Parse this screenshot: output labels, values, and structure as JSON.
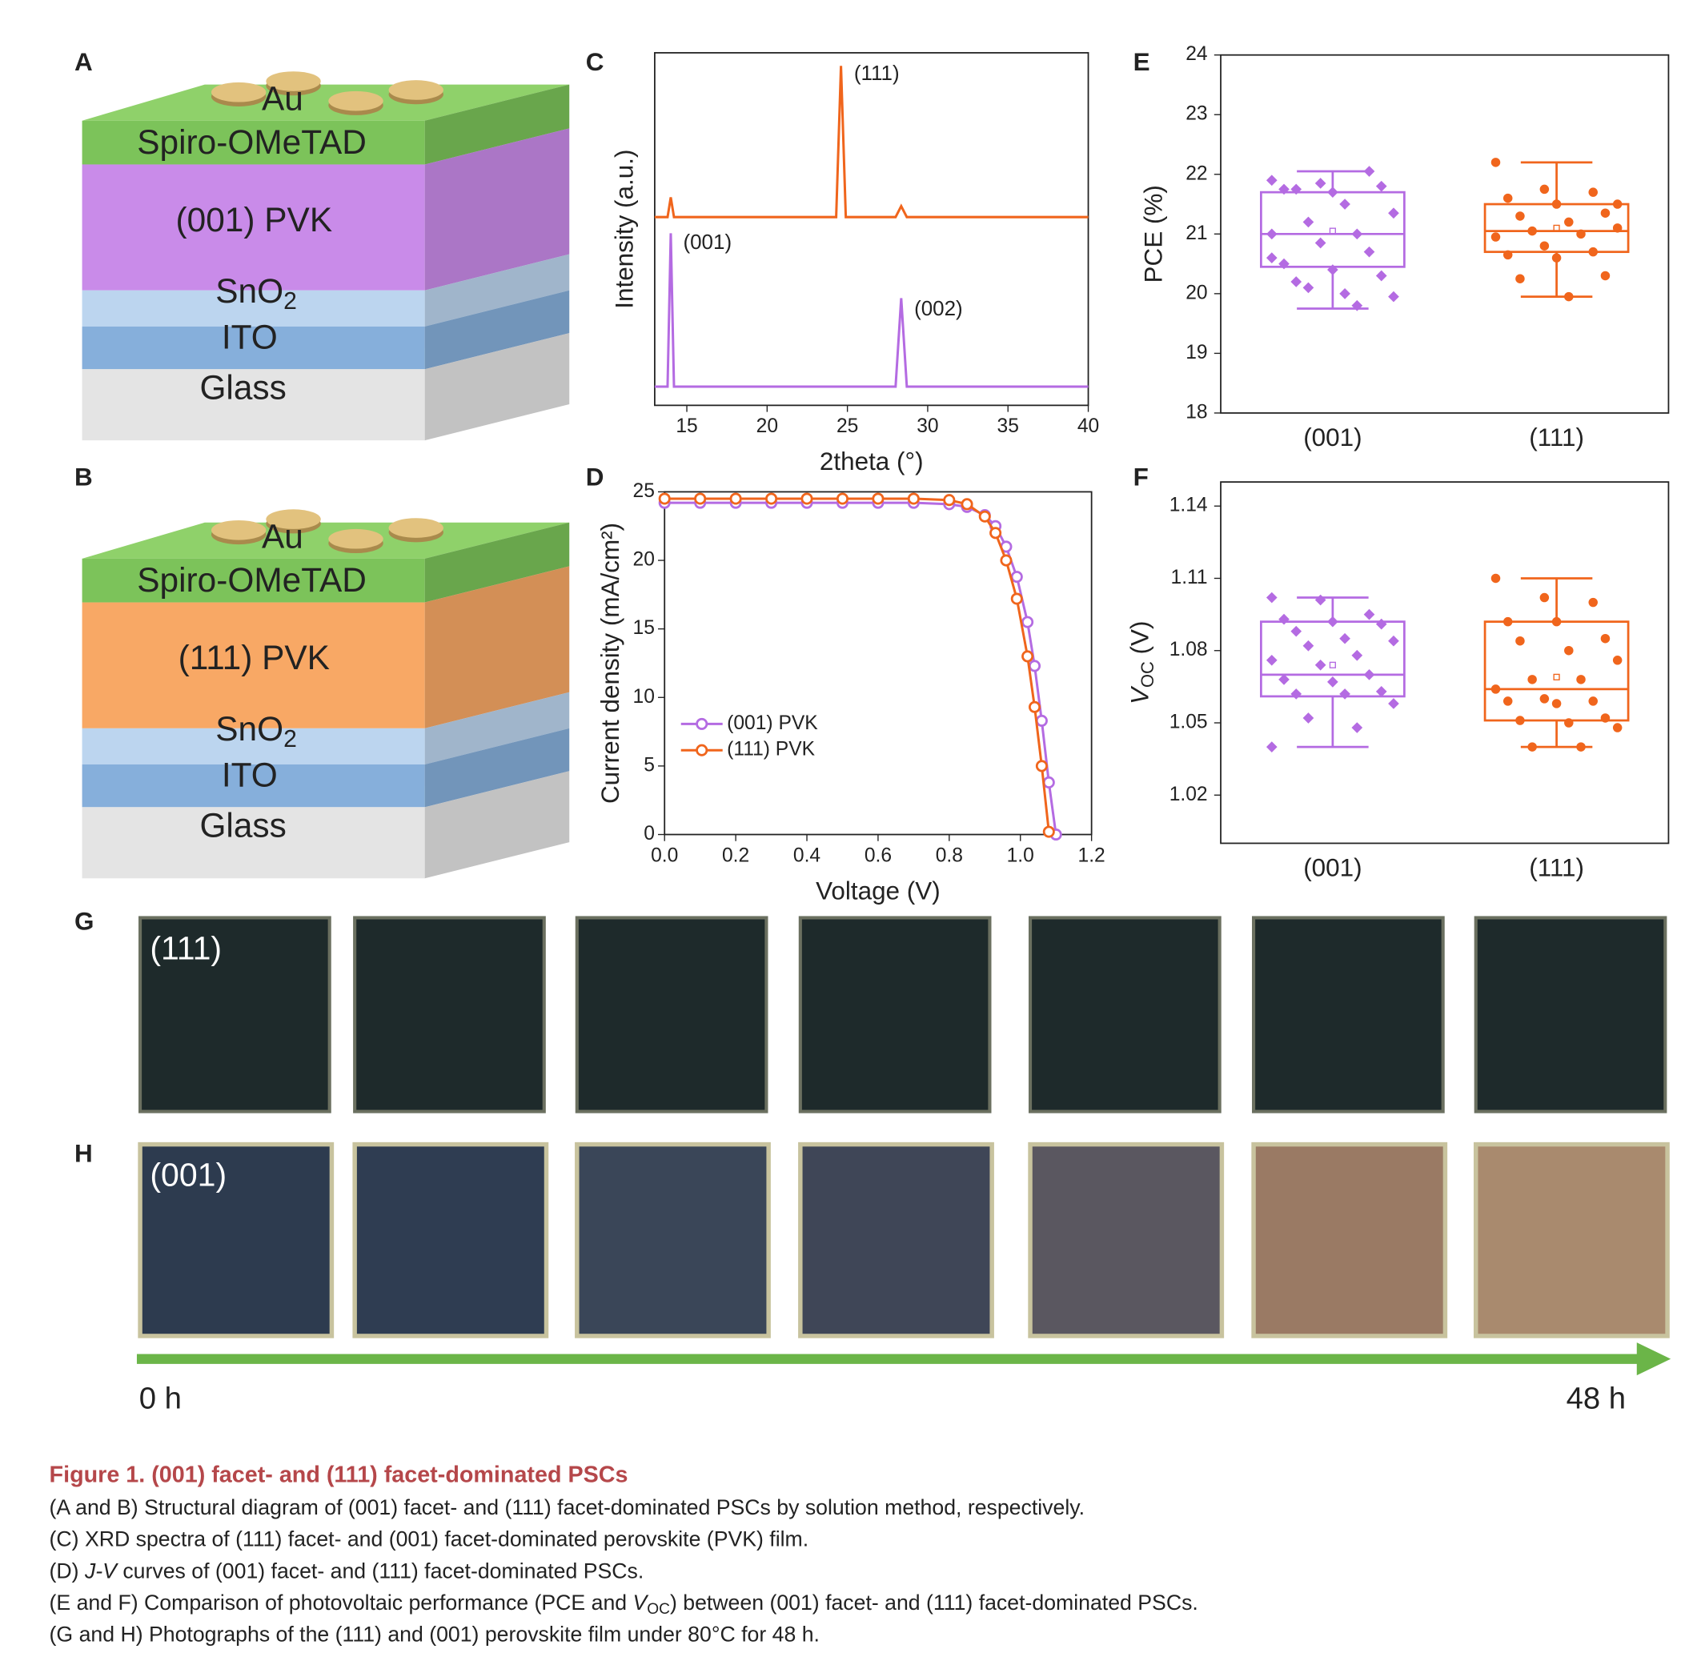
{
  "panel_labels": [
    "A",
    "B",
    "C",
    "D",
    "E",
    "F",
    "G",
    "H"
  ],
  "diagrams": [
    {
      "au": "Au",
      "htl": "Spiro-OMeTAD",
      "pvk": "(001) PVK",
      "sno2": [
        "SnO",
        "2"
      ],
      "ito": "ITO",
      "glass": "Glass"
    },
    {
      "au": "Au",
      "htl": "Spiro-OMeTAD",
      "pvk": "(111) PVK",
      "sno2": [
        "SnO",
        "2"
      ],
      "ito": "ITO",
      "glass": "Glass"
    }
  ],
  "chart_data": [
    {
      "type": "line",
      "x_label": "2theta (°)",
      "y_label": "Intensity (a.u.)",
      "x": [
        13,
        13.8,
        14.0,
        14.2,
        24.3,
        24.6,
        24.9,
        28.0,
        28.35,
        28.7,
        40
      ],
      "xlim": [
        13,
        40
      ],
      "xticks": [
        15,
        20,
        25,
        30,
        35,
        40
      ],
      "ylim": [
        0,
        100
      ],
      "series": [
        {
          "name": "(111)",
          "color": "#f0651c",
          "values": [
            53.4,
            53.4,
            59,
            53.4,
            53.4,
            96.3,
            53.4,
            53.4,
            56.5,
            53.4,
            53.4
          ]
        },
        {
          "name": "(001)",
          "color": "#b46be2",
          "values": [
            5.3,
            5.3,
            48.8,
            5.3,
            5.3,
            5.3,
            5.3,
            5.3,
            30.4,
            5.3,
            5.3
          ]
        }
      ],
      "peak_labels": [
        "(111)",
        "(001)",
        "(002)"
      ]
    },
    {
      "type": "line",
      "x_label": "Voltage (V)",
      "y_label": "Current density (mA/cm²)",
      "markers": true,
      "x": [
        0,
        0.1,
        0.2,
        0.3,
        0.4,
        0.5,
        0.6,
        0.7,
        0.8,
        0.85,
        0.9,
        0.93,
        0.96,
        0.99,
        1.02,
        1.04,
        1.06,
        1.08,
        1.1
      ],
      "xlim": [
        0,
        1.2
      ],
      "xticks": [
        {
          "value": 0,
          "label": "0.0"
        },
        0.2,
        0.4,
        0.6,
        0.8,
        {
          "value": 1,
          "label": "1.0"
        },
        1.2
      ],
      "ylim": [
        0,
        25
      ],
      "yticks": [
        0,
        5,
        10,
        15,
        20,
        25
      ],
      "series": [
        {
          "name": "(001) PVK",
          "color": "#b46be2",
          "values": [
            24.2,
            24.2,
            24.2,
            24.2,
            24.2,
            24.2,
            24.2,
            24.2,
            24.1,
            23.9,
            23.3,
            22.5,
            21.0,
            18.8,
            15.5,
            12.3,
            8.3,
            3.8,
            0
          ]
        },
        {
          "name": "(111) PVK",
          "color": "#f0651c",
          "values": [
            24.5,
            24.5,
            24.5,
            24.5,
            24.5,
            24.5,
            24.5,
            24.5,
            24.4,
            24.1,
            23.2,
            22.0,
            20.0,
            17.2,
            13.0,
            9.3,
            5.0,
            0.2,
            null
          ]
        }
      ]
    },
    {
      "type": "box",
      "y_label": "PCE (%)",
      "categories": [
        "(001)",
        "(111)"
      ],
      "colors": [
        "#b46be2",
        "#f0651c"
      ],
      "markers": [
        "diamond",
        "circle"
      ],
      "ylim": [
        18,
        24
      ],
      "yticks": [
        18,
        19,
        20,
        21,
        22,
        23,
        24
      ],
      "stats": [
        {
          "min": 19.75,
          "q1": 20.45,
          "median": 21.0,
          "q3": 21.7,
          "max": 22.05,
          "mean": 21.05
        },
        {
          "min": 19.95,
          "q1": 20.7,
          "median": 21.05,
          "q3": 21.5,
          "max": 22.2,
          "mean": 21.1
        }
      ],
      "points": [
        [
          21.9,
          21.85,
          22.05,
          21.75,
          21.7,
          21.8,
          21.75,
          21.5,
          21.35,
          21.2,
          21.0,
          21.0,
          20.85,
          20.7,
          20.5,
          20.4,
          20.3,
          20.2,
          20.0,
          19.95,
          20.1,
          19.8,
          20.6
        ],
        [
          22.2,
          21.75,
          21.7,
          21.6,
          21.5,
          21.35,
          21.3,
          21.2,
          21.1,
          21.05,
          21.0,
          20.95,
          20.8,
          20.7,
          20.65,
          20.6,
          20.3,
          20.25,
          19.95,
          21.5
        ]
      ]
    },
    {
      "type": "box",
      "y_label": {
        "symbol": "V",
        "subscript": "OC",
        "unit": " (V)"
      },
      "categories": [
        "(001)",
        "(111)"
      ],
      "colors": [
        "#b46be2",
        "#f0651c"
      ],
      "markers": [
        "diamond",
        "circle"
      ],
      "ylim": [
        1.0,
        1.15
      ],
      "yticks": [
        1.02,
        1.05,
        1.08,
        1.11,
        1.14
      ],
      "stats": [
        {
          "min": 1.04,
          "q1": 1.061,
          "median": 1.07,
          "q3": 1.092,
          "max": 1.102,
          "mean": 1.074
        },
        {
          "min": 1.04,
          "q1": 1.051,
          "median": 1.064,
          "q3": 1.092,
          "max": 1.11,
          "mean": 1.069
        }
      ],
      "points": [
        [
          1.102,
          1.101,
          1.095,
          1.093,
          1.092,
          1.091,
          1.088,
          1.085,
          1.084,
          1.082,
          1.078,
          1.076,
          1.074,
          1.07,
          1.068,
          1.067,
          1.063,
          1.062,
          1.062,
          1.058,
          1.052,
          1.048,
          1.04
        ],
        [
          1.11,
          1.102,
          1.1,
          1.092,
          1.092,
          1.085,
          1.084,
          1.08,
          1.076,
          1.068,
          1.068,
          1.064,
          1.06,
          1.059,
          1.059,
          1.058,
          1.052,
          1.051,
          1.05,
          1.048,
          1.04,
          1.04
        ]
      ]
    }
  ],
  "photos": {
    "g_label": "(111)",
    "h_label": "(001)",
    "start": "0 h",
    "end": "48 h"
  },
  "caption": {
    "title": "Figure 1.  (001) facet- and (111) facet-dominated PSCs",
    "lines": [
      [
        "(A and B) Structural diagram of (001) facet- and (111) facet-dominated PSCs by solution method, respectively."
      ],
      [
        "(C) XRD spectra of (111) facet- and (001) facet-dominated perovskite (PVK) film."
      ],
      [
        "(D) ",
        "J-V",
        " curves of (001) facet- and (111) facet-dominated PSCs."
      ],
      [
        "(E and F) Comparison of photovoltaic performance (PCE and ",
        "V",
        "OC",
        ") between (001) facet- and (111) facet-dominated PSCs."
      ],
      [
        "(G and H) Photographs of the (111) and (001) perovskite film under 80°C for 48 h."
      ]
    ]
  }
}
